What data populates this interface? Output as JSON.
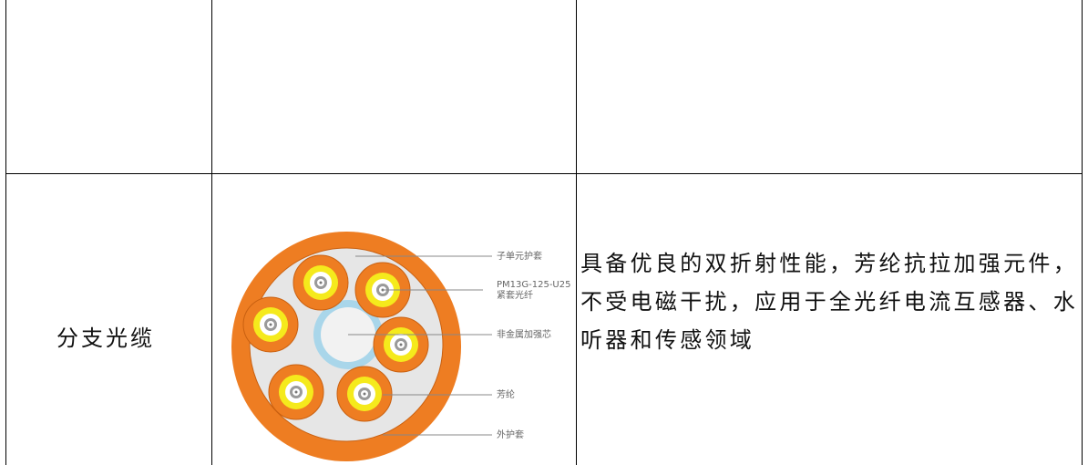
{
  "table": {
    "label": "分支光缆",
    "diagram": {
      "labels": [
        "子单元护套",
        "PM13G-125-U25",
        "紧套光纤",
        "非金属加强芯",
        "芳纶",
        "外护套"
      ]
    },
    "description": "具备优良的双折射性能，芳纶抗拉加强元件，不受电磁干扰，应用于全光纤电流互感器、水听器和传感领域"
  }
}
